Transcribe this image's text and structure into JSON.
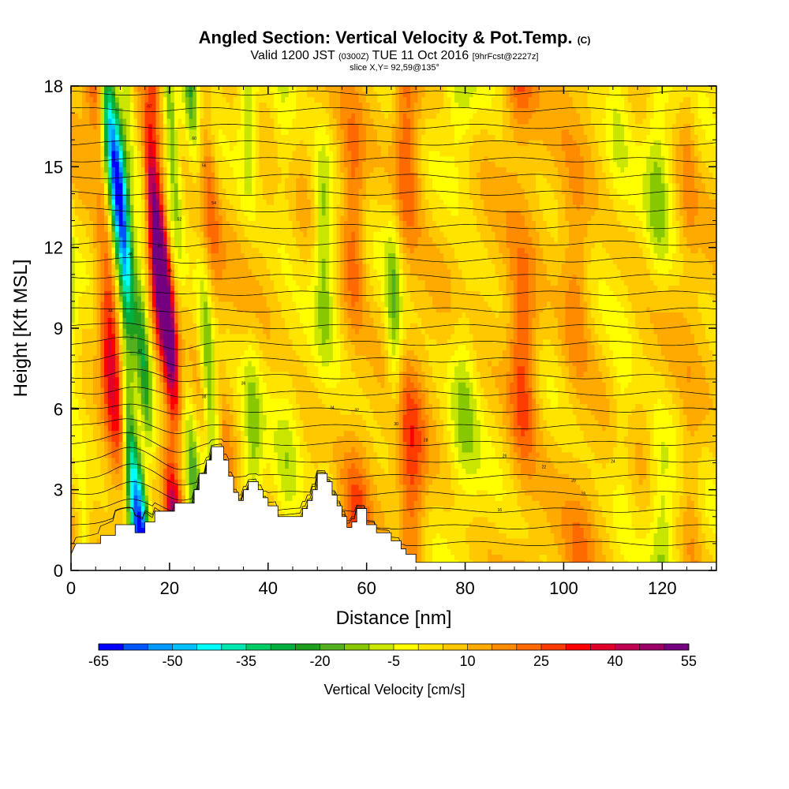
{
  "header": {
    "title": "Angled Section: Vertical Velocity & Pot.Temp.",
    "title_tag": "(C)",
    "valid_prefix": "Valid 1200 JST",
    "valid_utc": "(0300Z)",
    "valid_date": "TUE 11 Oct 2016",
    "forecast_tag": "[9hrFcst@2227z]",
    "slice": "slice X,Y= 92,59@135°"
  },
  "chart_data": {
    "type": "heatmap",
    "xlabel": "Distance [nm]",
    "ylabel": "Height [Kft MSL]",
    "xlim": [
      0,
      131
    ],
    "ylim": [
      0,
      18
    ],
    "x_ticks": [
      0,
      20,
      40,
      60,
      80,
      100,
      120
    ],
    "y_ticks": [
      0,
      3,
      6,
      9,
      12,
      15,
      18
    ],
    "colorbar": {
      "label": "Vertical Velocity [cm/s]",
      "min": -65,
      "step": 5,
      "tick_labels": [
        "-65",
        "-50",
        "-35",
        "-20",
        "-5",
        "10",
        "25",
        "40",
        "55"
      ],
      "colors": [
        "#0000ff",
        "#0055ff",
        "#0099ff",
        "#00c0ff",
        "#00ffff",
        "#00e8b0",
        "#00cc66",
        "#00b040",
        "#209e20",
        "#55b020",
        "#88c800",
        "#c8e600",
        "#ffff00",
        "#ffe400",
        "#ffc800",
        "#ffaa00",
        "#ff8c00",
        "#ff6a00",
        "#ff3c00",
        "#ff0000",
        "#e0002a",
        "#c00050",
        "#9a0066",
        "#740080"
      ]
    },
    "velocity_columns": [
      {
        "x": 2,
        "w": 1.6,
        "v": -20
      },
      {
        "x": 10,
        "w": 2.2,
        "v": 35
      },
      {
        "x": 12.5,
        "w": 1.4,
        "v": -45
      },
      {
        "x": 14,
        "w": 1.5,
        "v": -60
      },
      {
        "x": 16.5,
        "w": 1.4,
        "v": -28
      },
      {
        "x": 20.5,
        "w": 1.5,
        "v": 55
      },
      {
        "x": 22,
        "w": 1.4,
        "v": 45
      },
      {
        "x": 25,
        "w": 1.4,
        "v": -20
      },
      {
        "x": 29.5,
        "w": 1.5,
        "v": -25
      },
      {
        "x": 32,
        "w": 1.8,
        "v": 15
      },
      {
        "x": 37,
        "w": 2.0,
        "v": -15
      },
      {
        "x": 44,
        "w": 2.5,
        "v": -10
      },
      {
        "x": 52,
        "w": 2.0,
        "v": -20
      },
      {
        "x": 58,
        "w": 2.5,
        "v": 20
      },
      {
        "x": 66,
        "w": 1.6,
        "v": -20
      },
      {
        "x": 69,
        "w": 3.0,
        "v": 22
      },
      {
        "x": 80,
        "w": 3.0,
        "v": -15
      },
      {
        "x": 92,
        "w": 3.0,
        "v": 25
      },
      {
        "x": 103,
        "w": 3.0,
        "v": 15
      },
      {
        "x": 112,
        "w": 2.5,
        "v": -10
      },
      {
        "x": 120,
        "w": 2.5,
        "v": -15
      },
      {
        "x": 126,
        "w": 2.0,
        "v": 10
      }
    ],
    "terrain": [
      [
        0,
        0.6
      ],
      [
        1,
        1.0
      ],
      [
        6,
        1.0
      ],
      [
        6,
        1.3
      ],
      [
        9,
        1.3
      ],
      [
        9,
        1.7
      ],
      [
        13,
        1.7
      ],
      [
        13,
        1.4
      ],
      [
        15,
        1.4
      ],
      [
        15,
        1.8
      ],
      [
        17,
        1.8
      ],
      [
        17,
        2.2
      ],
      [
        21,
        2.2
      ],
      [
        21,
        2.5
      ],
      [
        25,
        2.5
      ],
      [
        25,
        3.0
      ],
      [
        26,
        3.0
      ],
      [
        26,
        3.6
      ],
      [
        27.5,
        3.6
      ],
      [
        27.5,
        4.1
      ],
      [
        28.5,
        4.1
      ],
      [
        28.5,
        4.6
      ],
      [
        31,
        4.6
      ],
      [
        31,
        4.1
      ],
      [
        32,
        4.1
      ],
      [
        32,
        3.5
      ],
      [
        33,
        3.5
      ],
      [
        33,
        2.9
      ],
      [
        34,
        2.9
      ],
      [
        34,
        2.6
      ],
      [
        35,
        2.6
      ],
      [
        35,
        3.0
      ],
      [
        36,
        3.0
      ],
      [
        36,
        3.3
      ],
      [
        38,
        3.3
      ],
      [
        38,
        3.0
      ],
      [
        39,
        3.0
      ],
      [
        39,
        2.7
      ],
      [
        40,
        2.7
      ],
      [
        40,
        2.4
      ],
      [
        42,
        2.4
      ],
      [
        42,
        2.0
      ],
      [
        47,
        2.0
      ],
      [
        47,
        2.3
      ],
      [
        48,
        2.3
      ],
      [
        48,
        2.6
      ],
      [
        49,
        2.6
      ],
      [
        49,
        3.0
      ],
      [
        50,
        3.0
      ],
      [
        50,
        3.6
      ],
      [
        52,
        3.6
      ],
      [
        52,
        3.3
      ],
      [
        53,
        3.3
      ],
      [
        53,
        2.8
      ],
      [
        54,
        2.8
      ],
      [
        54,
        2.4
      ],
      [
        55,
        2.4
      ],
      [
        55,
        2.0
      ],
      [
        56,
        2.0
      ],
      [
        56,
        1.6
      ],
      [
        57,
        1.6
      ],
      [
        57,
        1.8
      ],
      [
        58,
        1.8
      ],
      [
        58,
        2.3
      ],
      [
        60,
        2.3
      ],
      [
        60,
        1.7
      ],
      [
        62,
        1.7
      ],
      [
        62,
        1.4
      ],
      [
        65,
        1.4
      ],
      [
        65,
        1.1
      ],
      [
        67,
        1.1
      ],
      [
        67,
        0.8
      ],
      [
        68,
        0.8
      ],
      [
        68,
        0.6
      ],
      [
        70,
        0.6
      ],
      [
        70,
        0.3
      ],
      [
        131,
        0.3
      ]
    ],
    "theta_label_values": [
      "67",
      "60",
      "56",
      "54",
      "52",
      "50",
      "48",
      "46",
      "44",
      "42",
      "40",
      "38",
      "36",
      "34",
      "32",
      "30",
      "28",
      "26",
      "24",
      "22",
      "20",
      "18",
      "16"
    ]
  }
}
